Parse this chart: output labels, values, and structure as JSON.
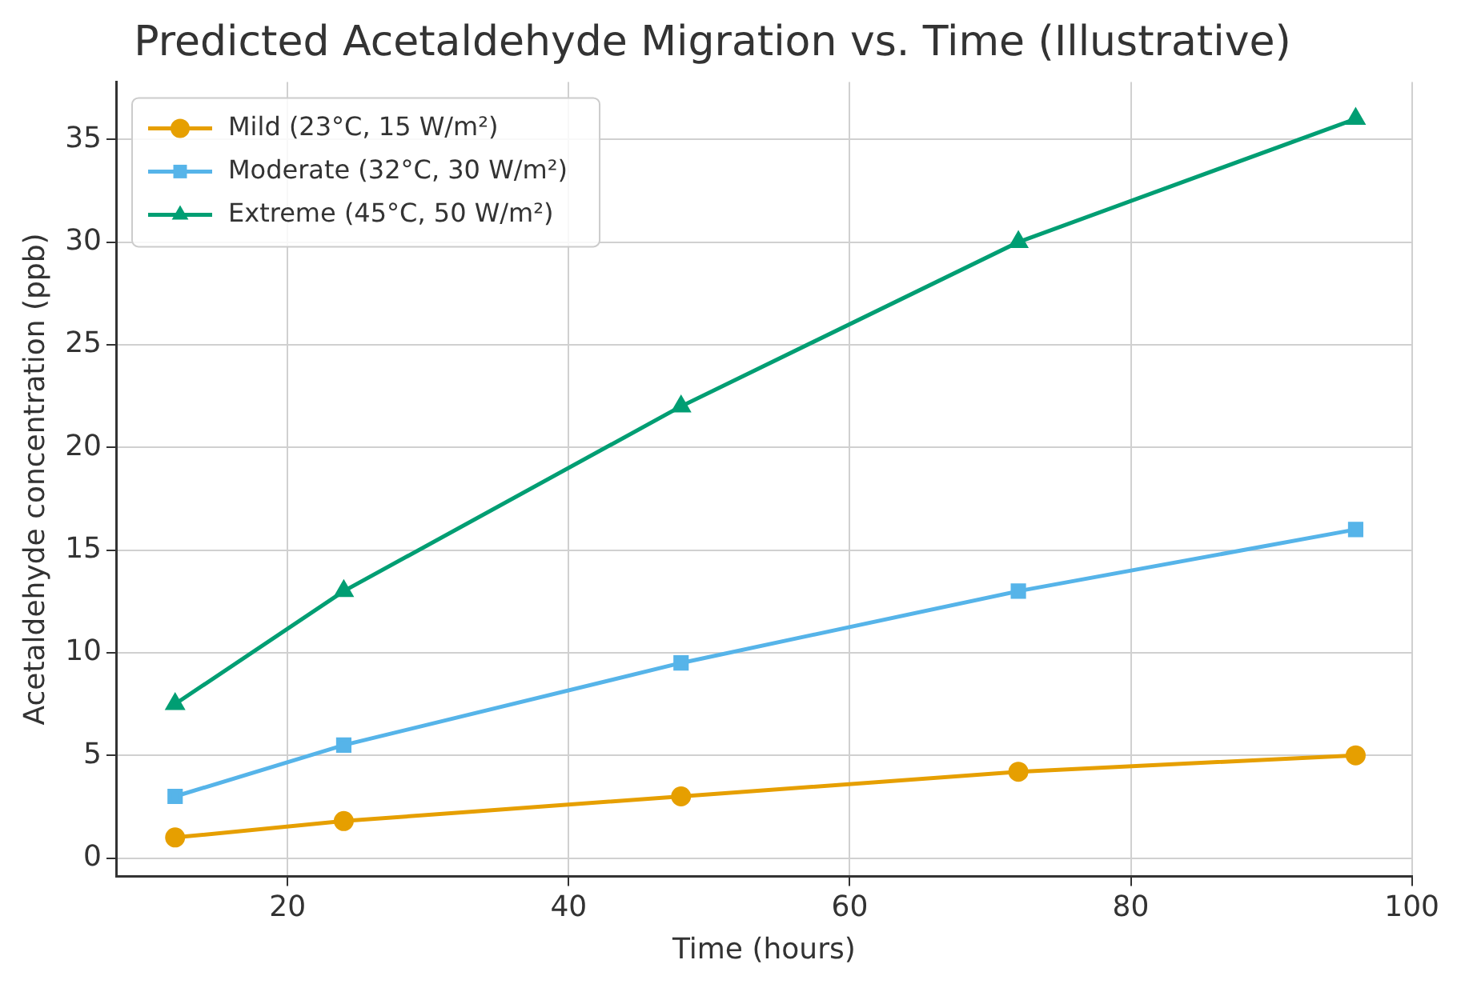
{
  "chart_data": {
    "type": "line",
    "title": "Predicted Acetaldehyde Migration vs. Time (Illustrative)",
    "xlabel": "Time (hours)",
    "ylabel": "Acetaldehyde concentration (ppb)",
    "x": [
      12,
      24,
      48,
      72,
      96
    ],
    "series": [
      {
        "name": "Mild (23°C, 15 W/m²)",
        "color": "#e69f00",
        "marker": "circle",
        "values": [
          1,
          1.8,
          3,
          4.2,
          5
        ]
      },
      {
        "name": "Moderate (32°C, 30 W/m²)",
        "color": "#56b4e9",
        "marker": "square",
        "values": [
          3,
          5.5,
          9.5,
          13,
          16
        ]
      },
      {
        "name": "Extreme (45°C, 50 W/m²)",
        "color": "#009e73",
        "marker": "triangle",
        "values": [
          7.5,
          13,
          22,
          30,
          36
        ]
      }
    ],
    "xlim": [
      7.8,
      100
    ],
    "xticks": [
      20,
      40,
      60,
      80,
      100
    ],
    "ylim": [
      -0.9,
      37.8
    ],
    "yticks": [
      0,
      5,
      10,
      15,
      20,
      25,
      30,
      35
    ],
    "grid": true,
    "legend": "top left",
    "line_style": "solid"
  }
}
